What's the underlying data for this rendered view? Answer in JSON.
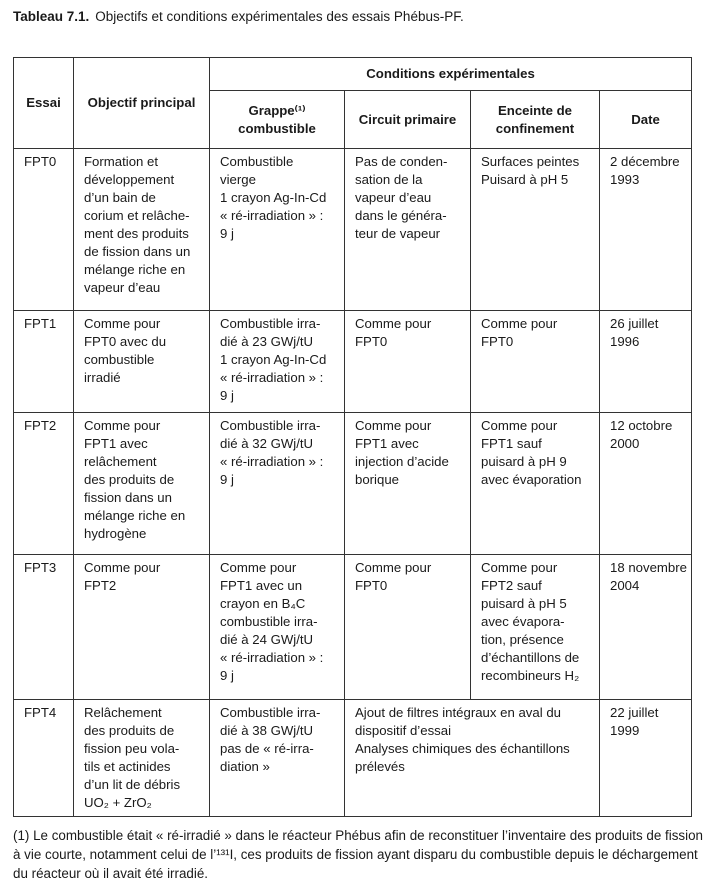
{
  "caption": {
    "label": "Tableau 7.1.",
    "title": "Objectifs et conditions expérimentales des essais Phébus-PF."
  },
  "headers": {
    "essai": "Essai",
    "objectif": "Objectif principal",
    "conditions": "Conditions expérimentales",
    "grappe": [
      "Grappe⁽¹⁾",
      "combustible"
    ],
    "circuit": "Circuit primaire",
    "enceinte": [
      "Enceinte de",
      "confinement"
    ],
    "date": "Date"
  },
  "rows": [
    {
      "essai": "FPT0",
      "objectif": [
        "Formation et",
        "développement",
        "d’un bain de",
        "corium et relâche-",
        "ment des produits",
        "de fission dans un",
        "mélange riche en",
        "vapeur d’eau"
      ],
      "grappe": [
        "Combustible",
        "vierge",
        "1 crayon Ag-In-Cd",
        "« ré-irradiation » :",
        "9 j"
      ],
      "circuit": [
        "Pas de conden-",
        "sation de la",
        "vapeur d’eau",
        "dans le généra-",
        "teur de vapeur"
      ],
      "enceinte": [
        "Surfaces peintes",
        "Puisard à pH 5"
      ],
      "date": [
        "2 décembre",
        "1993"
      ]
    },
    {
      "essai": "FPT1",
      "objectif": [
        "Comme pour",
        "FPT0 avec du",
        "combustible",
        "irradié"
      ],
      "grappe": [
        "Combustible irra-",
        "dié à 23 GWj/tU",
        "1 crayon Ag-In-Cd",
        "« ré-irradiation » :",
        "9 j"
      ],
      "circuit": [
        "Comme pour",
        "FPT0"
      ],
      "enceinte": [
        "Comme pour",
        "FPT0"
      ],
      "date": [
        "26 juillet",
        "1996"
      ]
    },
    {
      "essai": "FPT2",
      "objectif": [
        "Comme pour",
        "FPT1 avec",
        "relâchement",
        "des produits de",
        "fission dans un",
        "mélange riche en",
        "hydrogène"
      ],
      "grappe": [
        "Combustible irra-",
        "dié à 32 GWj/tU",
        "« ré-irradiation » :",
        "9 j"
      ],
      "circuit": [
        "Comme pour",
        "FPT1 avec",
        "injection d’acide",
        "borique"
      ],
      "enceinte": [
        "Comme pour",
        "FPT1 sauf",
        "puisard à pH 9",
        "avec évaporation"
      ],
      "date": [
        "12 octobre",
        "2000"
      ]
    },
    {
      "essai": "FPT3",
      "objectif": [
        "Comme pour",
        "FPT2"
      ],
      "grappe": [
        "Comme pour",
        "FPT1 avec un",
        "crayon en B₄C",
        "combustible irra-",
        "dié à 24 GWj/tU",
        "« ré-irradiation » :",
        "9 j"
      ],
      "circuit": [
        "Comme pour",
        "FPT0"
      ],
      "enceinte": [
        "Comme pour",
        "FPT2 sauf",
        "puisard à pH 5",
        "avec évapora-",
        "tion, présence",
        "d’échantillons de",
        "recombineurs H₂"
      ],
      "date": [
        "18 novembre",
        "2004"
      ]
    },
    {
      "essai": "FPT4",
      "objectif": [
        "Relâchement",
        "des produits de",
        "fission peu vola-",
        "tils et actinides",
        "d’un lit de débris",
        "UO₂ + ZrO₂"
      ],
      "grappe": [
        "Combustible irra-",
        "dié à 38 GWj/tU",
        "pas de « ré-irra-",
        "diation »"
      ],
      "circuit_enceinte": [
        "Ajout de filtres intégraux en aval du",
        "dispositif d’essai",
        "Analyses chimiques des échantillons",
        "prélevés"
      ],
      "date": [
        "22 juillet",
        "1999"
      ]
    }
  ],
  "footnote": "(1) Le combustible était « ré-irradié » dans le réacteur Phébus afin de reconstituer l’inventaire des produits de fission à vie courte, notamment celui de l’¹³¹I, ces produits de fission ayant disparu du combustible depuis le déchargement du réacteur où il avait été irradié."
}
